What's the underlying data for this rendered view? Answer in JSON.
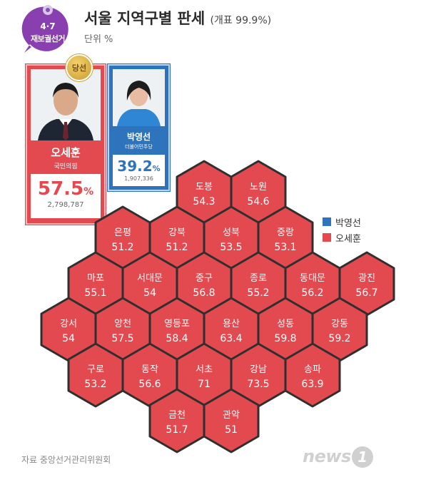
{
  "badge": {
    "date": "4·7",
    "label": "재보궐선거",
    "color": "#8a3fb0"
  },
  "title": {
    "main": "서울 지역구별 판세",
    "sub": "(개표 99.9%)",
    "unit": "단위 %"
  },
  "candidates": [
    {
      "name": "오세훈",
      "party": "국민의힘",
      "pct": "57.5",
      "pct_suffix": "%",
      "votes": "2,798,787",
      "color": "#e34a4f",
      "winner_badge": "당선"
    },
    {
      "name": "박영선",
      "party": "더불어민주당",
      "pct": "39.2",
      "pct_suffix": "%",
      "votes": "1,907,336",
      "color": "#2d74bd"
    }
  ],
  "legend": [
    {
      "label": "박영선",
      "color": "#2d74bd"
    },
    {
      "label": "오세훈",
      "color": "#e34a4f"
    }
  ],
  "districts": [
    {
      "name": "도봉",
      "value": "54.3",
      "winner": "오세훈"
    },
    {
      "name": "노원",
      "value": "54.6",
      "winner": "오세훈"
    },
    {
      "name": "은평",
      "value": "51.2",
      "winner": "오세훈"
    },
    {
      "name": "강북",
      "value": "51.2",
      "winner": "오세훈"
    },
    {
      "name": "성북",
      "value": "53.5",
      "winner": "오세훈"
    },
    {
      "name": "중랑",
      "value": "53.1",
      "winner": "오세훈"
    },
    {
      "name": "마포",
      "value": "55.1",
      "winner": "오세훈"
    },
    {
      "name": "서대문",
      "value": "54",
      "winner": "오세훈"
    },
    {
      "name": "중구",
      "value": "56.8",
      "winner": "오세훈"
    },
    {
      "name": "종로",
      "value": "55.2",
      "winner": "오세훈"
    },
    {
      "name": "동대문",
      "value": "56.2",
      "winner": "오세훈"
    },
    {
      "name": "광진",
      "value": "56.7",
      "winner": "오세훈"
    },
    {
      "name": "강서",
      "value": "54",
      "winner": "오세훈"
    },
    {
      "name": "양천",
      "value": "57.5",
      "winner": "오세훈"
    },
    {
      "name": "영등포",
      "value": "58.4",
      "winner": "오세훈"
    },
    {
      "name": "용산",
      "value": "63.4",
      "winner": "오세훈"
    },
    {
      "name": "성동",
      "value": "59.8",
      "winner": "오세훈"
    },
    {
      "name": "강동",
      "value": "59.2",
      "winner": "오세훈"
    },
    {
      "name": "구로",
      "value": "53.2",
      "winner": "오세훈"
    },
    {
      "name": "동작",
      "value": "56.6",
      "winner": "오세훈"
    },
    {
      "name": "서초",
      "value": "71",
      "winner": "오세훈"
    },
    {
      "name": "강남",
      "value": "73.5",
      "winner": "오세훈"
    },
    {
      "name": "송파",
      "value": "63.9",
      "winner": "오세훈"
    },
    {
      "name": "금천",
      "value": "51.7",
      "winner": "오세훈"
    },
    {
      "name": "관악",
      "value": "51",
      "winner": "오세훈"
    }
  ],
  "footer": {
    "source": "자료 중앙선거관리위원회",
    "logo_text": "news",
    "logo_mark": "1"
  }
}
